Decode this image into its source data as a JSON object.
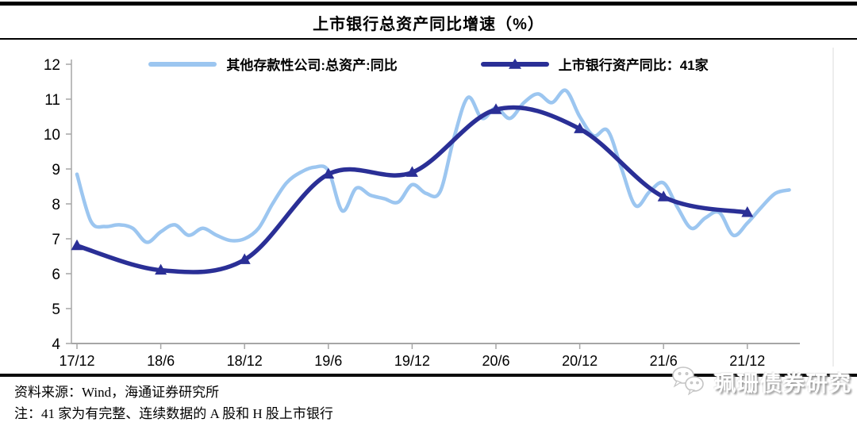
{
  "title": "上市银行总资产同比增速（%）",
  "legend": [
    {
      "label": "其他存款性公司:总资产:同比",
      "color": "#9CC6F0"
    },
    {
      "label": "上市银行资产同比：41家",
      "color": "#2A2F96"
    }
  ],
  "footer": {
    "source": "资料来源：Wind，海通证券研究所",
    "note": "注：41 家为有完整、连续数据的 A 股和 H 股上市银行",
    "logo_text": "珮珊债券研究"
  },
  "chart_data": {
    "type": "line",
    "title": "上市银行总资产同比增速（%）",
    "ylim": [
      4,
      12
    ],
    "y_ticks": [
      12,
      11,
      10,
      9,
      8,
      7,
      6,
      5,
      4
    ],
    "x_ticklabels": [
      "17/12",
      "18/6",
      "18/12",
      "19/6",
      "19/12",
      "20/6",
      "20/12",
      "21/6",
      "21/12"
    ],
    "grid": false,
    "legend_position": "top",
    "axis_color": "#A6A6A6",
    "series": [
      {
        "name": "其他存款性公司:总资产:同比",
        "color": "#9CC6F0",
        "marker": "none",
        "x": [
          "17/12",
          "18/1",
          "18/2",
          "18/3",
          "18/4",
          "18/5",
          "18/6",
          "18/7",
          "18/8",
          "18/9",
          "18/10",
          "18/11",
          "18/12",
          "19/1",
          "19/2",
          "19/3",
          "19/4",
          "19/5",
          "19/6",
          "19/7",
          "19/8",
          "19/9",
          "19/10",
          "19/11",
          "19/12",
          "20/1",
          "20/2",
          "20/3",
          "20/4",
          "20/5",
          "20/6",
          "20/7",
          "20/8",
          "20/9",
          "20/10",
          "20/11",
          "20/12",
          "21/1",
          "21/2",
          "21/3",
          "21/4",
          "21/5",
          "21/6",
          "21/7",
          "21/8",
          "21/9",
          "21/10",
          "21/11",
          "21/12",
          "22/1",
          "22/2",
          "22/3"
        ],
        "values": [
          8.85,
          7.5,
          7.35,
          7.4,
          7.3,
          6.9,
          7.2,
          7.4,
          7.1,
          7.3,
          7.1,
          6.95,
          7.0,
          7.3,
          8.0,
          8.6,
          8.9,
          9.05,
          8.95,
          7.8,
          8.45,
          8.25,
          8.15,
          8.05,
          8.55,
          8.3,
          8.35,
          9.9,
          11.05,
          10.45,
          10.75,
          10.45,
          10.9,
          11.15,
          10.9,
          11.25,
          10.5,
          9.95,
          10.1,
          9.0,
          7.95,
          8.35,
          8.6,
          7.9,
          7.3,
          7.6,
          7.75,
          7.1,
          7.45,
          7.9,
          8.3,
          8.4
        ]
      },
      {
        "name": "上市银行资产同比：41家",
        "color": "#2A2F96",
        "marker": "triangle",
        "x": [
          "17/12",
          "18/6",
          "18/12",
          "19/6",
          "19/12",
          "20/6",
          "20/12",
          "21/6",
          "21/12"
        ],
        "x_months": [
          0,
          6,
          12,
          18,
          24,
          30,
          36,
          42,
          48
        ],
        "values": [
          6.8,
          6.1,
          6.4,
          8.85,
          8.9,
          10.7,
          10.15,
          8.2,
          7.75
        ]
      }
    ]
  }
}
